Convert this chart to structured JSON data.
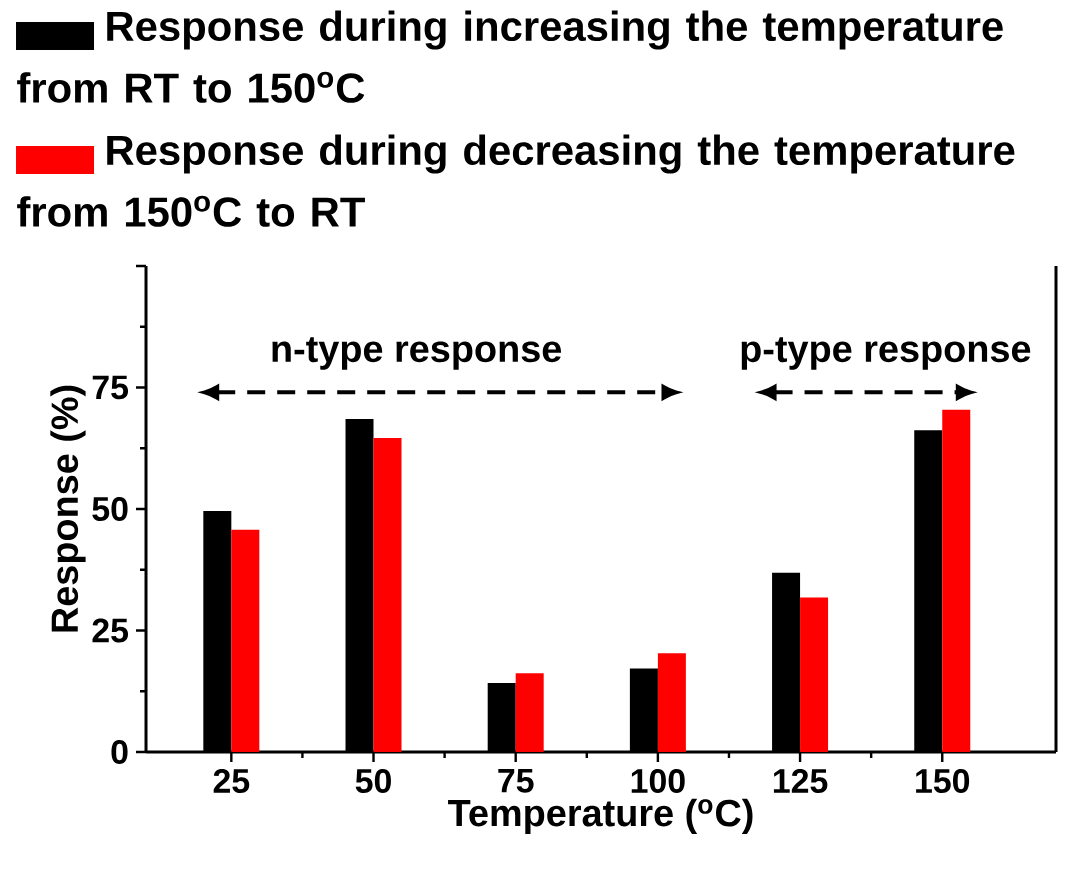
{
  "chart_data": {
    "type": "bar",
    "xlabel": "Temperature ($^{o}$C)",
    "ylabel": "Response (%)",
    "categories": [
      "25",
      "50",
      "75",
      "100",
      "125",
      "150"
    ],
    "series": [
      {
        "name": "Response during increasing the temperature from RT to 150$^{o}$C",
        "color": "#000000",
        "values": [
          49.6,
          68.5,
          14.2,
          17.2,
          36.9,
          66.2
        ]
      },
      {
        "name": "Response during decreasing the temperature from 150$^{o}$C to RT",
        "color": "#ff0000",
        "values": [
          45.7,
          64.6,
          16.2,
          20.3,
          31.8,
          70.4
        ]
      }
    ],
    "ylim": [
      0,
      100
    ],
    "yticks": [
      0,
      25,
      50,
      75,
      {
        "value": 100,
        "label": null
      }
    ],
    "legend": "top",
    "annotations": [
      "n-type response",
      "p-type response"
    ]
  }
}
